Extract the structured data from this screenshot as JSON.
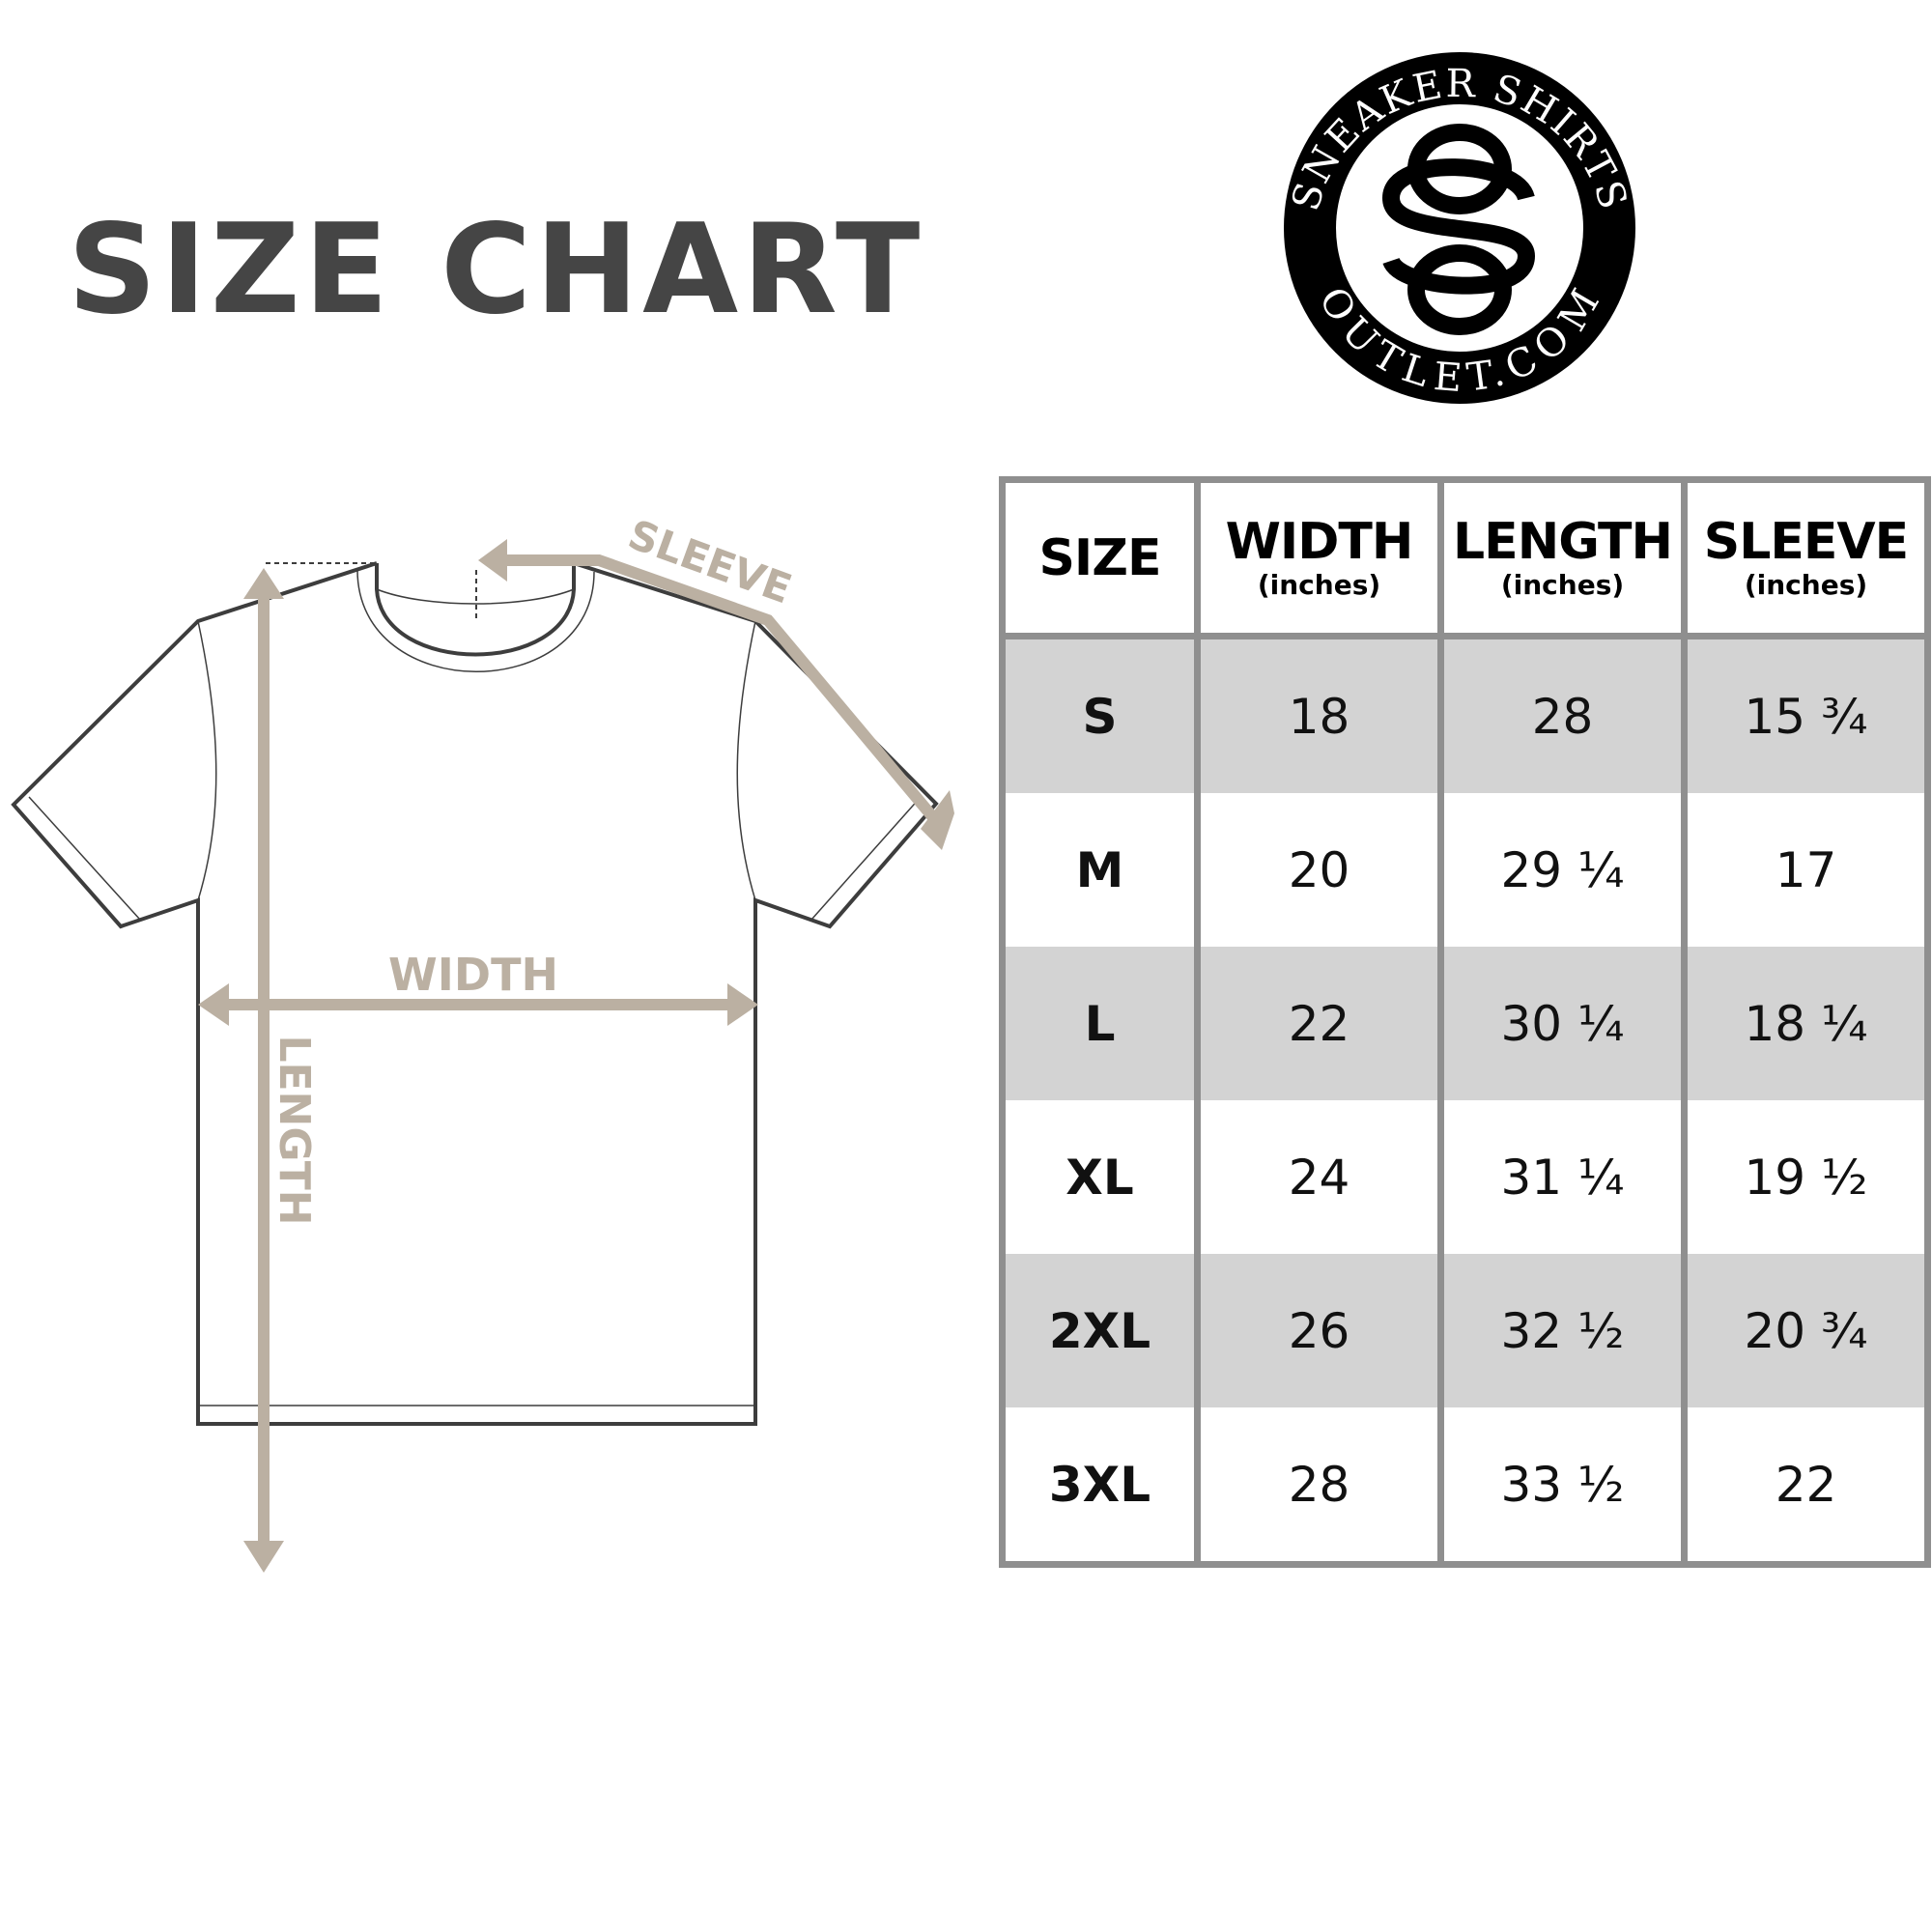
{
  "title": [
    "SIZE",
    "CHART"
  ],
  "logo": {
    "top_text": "SNEAKER SHIRTS",
    "bottom_text": "OUTLET.COM",
    "monogram": "SO"
  },
  "diagram": {
    "labels": {
      "sleeve": "SLEEVE",
      "width": "WIDTH",
      "length": "LENGTH"
    },
    "accent_color": "#bbb0a2",
    "outline_color": "#3d3d3d"
  },
  "table": {
    "headers": [
      {
        "main": "SIZE",
        "sub": ""
      },
      {
        "main": "WIDTH",
        "sub": "(inches)"
      },
      {
        "main": "LENGTH",
        "sub": "(inches)"
      },
      {
        "main": "SLEEVE",
        "sub": "(inches)"
      }
    ],
    "rows": [
      [
        "S",
        "18",
        "28",
        "15 ¾"
      ],
      [
        "M",
        "20",
        "29 ¼",
        "17"
      ],
      [
        "L",
        "22",
        "30 ¼",
        "18 ¼"
      ],
      [
        "XL",
        "24",
        "31 ¼",
        "19 ½"
      ],
      [
        "2XL",
        "26",
        "32 ½",
        "20 ¾"
      ],
      [
        "3XL",
        "28",
        "33 ½",
        "22"
      ]
    ],
    "shade_color": "#d3d3d3",
    "border_color": "#8f8f8f"
  }
}
